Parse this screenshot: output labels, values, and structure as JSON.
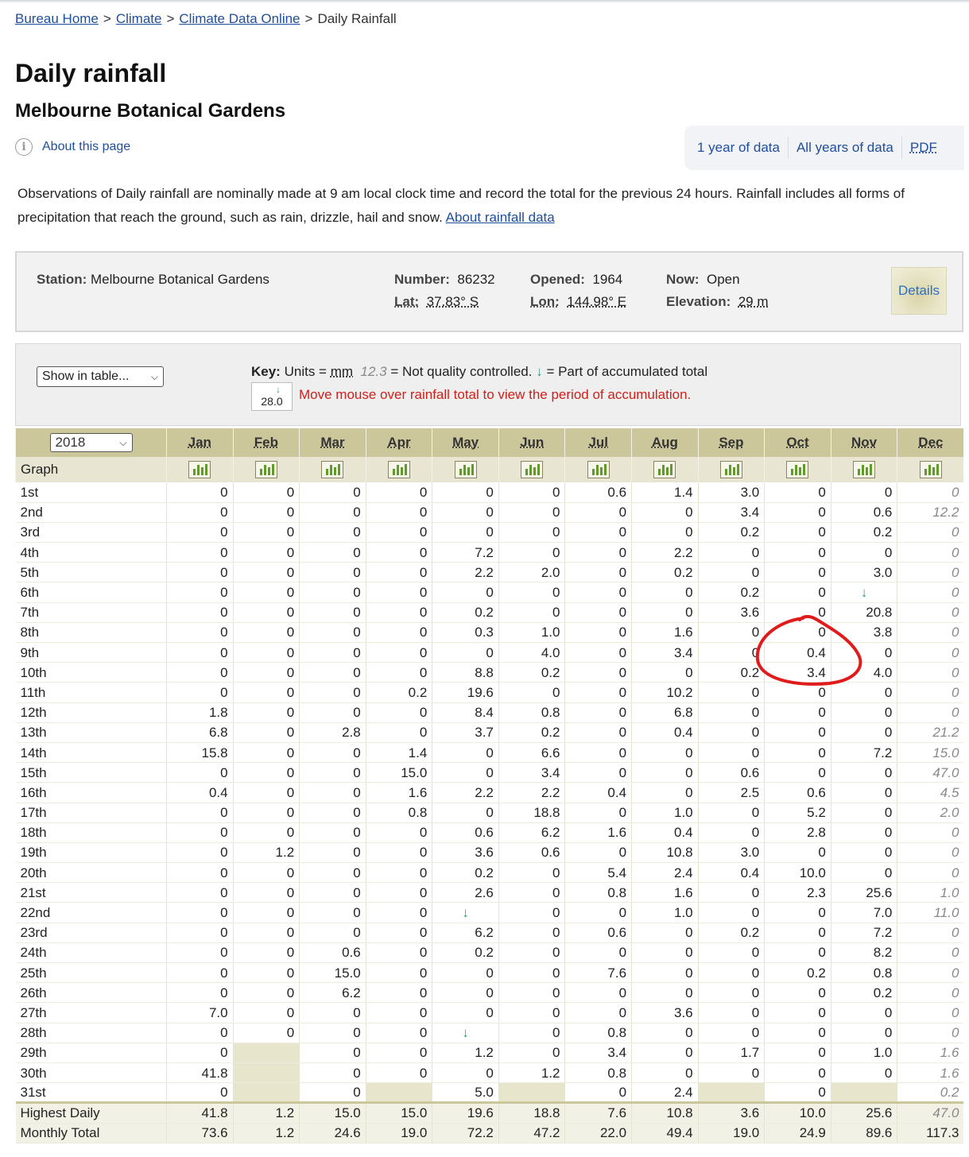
{
  "breadcrumb": {
    "home": "Bureau Home",
    "climate": "Climate",
    "cdo": "Climate Data Online",
    "current": "Daily Rainfall",
    "separator": ">"
  },
  "title": "Daily rainfall",
  "subtitle": "Melbourne Botanical Gardens",
  "about_link": "About this page",
  "views": {
    "one_year": "1 year of data",
    "all_years": "All years of data",
    "pdf": "PDF"
  },
  "description": "Observations of Daily rainfall are nominally made at 9 am local clock time and record the total for the previous 24 hours. Rainfall includes all forms of precipitation that reach the ground, such as rain, drizzle, hail and snow.",
  "about_rainfall_link": "About rainfall data",
  "station": {
    "station_label": "Station:",
    "station_value": "Melbourne Botanical Gardens",
    "number_label": "Number:",
    "number_value": "86232",
    "opened_label": "Opened:",
    "opened_value": "1964",
    "now_label": "Now:",
    "now_value": "Open",
    "lat_label": "Lat:",
    "lat_value": "37.83° S",
    "lon_label": "Lon:",
    "lon_value": "144.98° E",
    "elev_label": "Elevation:",
    "elev_value": "29 m",
    "details": "Details"
  },
  "key": {
    "show_select": "Show in table...",
    "label": "Key:",
    "units_text": "Units =",
    "units": "mm",
    "nq_sample": "12.3",
    "nq_text": "= Not quality controlled.",
    "acc_arrow": "↓",
    "acc_text": "= Part of accumulated total",
    "sample_value": "28.0",
    "mouse_text": "Move mouse over rainfall total to view the period of accumulation."
  },
  "table": {
    "year": "2018",
    "graph_label": "Graph",
    "months": [
      "Jan",
      "Feb",
      "Mar",
      "Apr",
      "May",
      "Jun",
      "Jul",
      "Aug",
      "Sep",
      "Oct",
      "Nov",
      "Dec"
    ],
    "days": [
      "1st",
      "2nd",
      "3rd",
      "4th",
      "5th",
      "6th",
      "7th",
      "8th",
      "9th",
      "10th",
      "11th",
      "12th",
      "13th",
      "14th",
      "15th",
      "16th",
      "17th",
      "18th",
      "19th",
      "20th",
      "21st",
      "22nd",
      "23rd",
      "24th",
      "25th",
      "26th",
      "27th",
      "28th",
      "29th",
      "30th",
      "31st"
    ],
    "rows": [
      [
        "0",
        "0",
        "0",
        "0",
        "0",
        "0",
        "0.6",
        "1.4",
        "3.0",
        "0",
        "0",
        "0"
      ],
      [
        "0",
        "0",
        "0",
        "0",
        "0",
        "0",
        "0",
        "0",
        "3.4",
        "0",
        "0.6",
        "12.2"
      ],
      [
        "0",
        "0",
        "0",
        "0",
        "0",
        "0",
        "0",
        "0",
        "0.2",
        "0",
        "0.2",
        "0"
      ],
      [
        "0",
        "0",
        "0",
        "0",
        "7.2",
        "0",
        "0",
        "2.2",
        "0",
        "0",
        "0",
        "0"
      ],
      [
        "0",
        "0",
        "0",
        "0",
        "2.2",
        "2.0",
        "0",
        "0.2",
        "0",
        "0",
        "3.0",
        "0"
      ],
      [
        "0",
        "0",
        "0",
        "0",
        "0",
        "0",
        "0",
        "0",
        "0.2",
        "0",
        "↓",
        "0"
      ],
      [
        "0",
        "0",
        "0",
        "0",
        "0.2",
        "0",
        "0",
        "0",
        "3.6",
        "0",
        "20.8",
        "0"
      ],
      [
        "0",
        "0",
        "0",
        "0",
        "0.3",
        "1.0",
        "0",
        "1.6",
        "0",
        "0",
        "3.8",
        "0"
      ],
      [
        "0",
        "0",
        "0",
        "0",
        "0",
        "4.0",
        "0",
        "3.4",
        "0",
        "0.4",
        "0",
        "0"
      ],
      [
        "0",
        "0",
        "0",
        "0",
        "8.8",
        "0.2",
        "0",
        "0",
        "0.2",
        "3.4",
        "4.0",
        "0"
      ],
      [
        "0",
        "0",
        "0",
        "0.2",
        "19.6",
        "0",
        "0",
        "10.2",
        "0",
        "0",
        "0",
        "0"
      ],
      [
        "1.8",
        "0",
        "0",
        "0",
        "8.4",
        "0.8",
        "0",
        "6.8",
        "0",
        "0",
        "0",
        "0"
      ],
      [
        "6.8",
        "0",
        "2.8",
        "0",
        "3.7",
        "0.2",
        "0",
        "0.4",
        "0",
        "0",
        "0",
        "21.2"
      ],
      [
        "15.8",
        "0",
        "0",
        "1.4",
        "0",
        "6.6",
        "0",
        "0",
        "0",
        "0",
        "7.2",
        "15.0"
      ],
      [
        "0",
        "0",
        "0",
        "15.0",
        "0",
        "3.4",
        "0",
        "0",
        "0.6",
        "0",
        "0",
        "47.0"
      ],
      [
        "0.4",
        "0",
        "0",
        "1.6",
        "2.2",
        "2.2",
        "0.4",
        "0",
        "2.5",
        "0.6",
        "0",
        "4.5"
      ],
      [
        "0",
        "0",
        "0",
        "0.8",
        "0",
        "18.8",
        "0",
        "1.0",
        "0",
        "5.2",
        "0",
        "2.0"
      ],
      [
        "0",
        "0",
        "0",
        "0",
        "0.6",
        "6.2",
        "1.6",
        "0.4",
        "0",
        "2.8",
        "0",
        "0"
      ],
      [
        "0",
        "1.2",
        "0",
        "0",
        "3.6",
        "0.6",
        "0",
        "10.8",
        "3.0",
        "0",
        "0",
        "0"
      ],
      [
        "0",
        "0",
        "0",
        "0",
        "0.2",
        "0",
        "5.4",
        "2.4",
        "0.4",
        "10.0",
        "0",
        "0"
      ],
      [
        "0",
        "0",
        "0",
        "0",
        "2.6",
        "0",
        "0.8",
        "1.6",
        "0",
        "2.3",
        "25.6",
        "1.0"
      ],
      [
        "0",
        "0",
        "0",
        "0",
        "↓",
        "0",
        "0",
        "1.0",
        "0",
        "0",
        "7.0",
        "11.0"
      ],
      [
        "0",
        "0",
        "0",
        "0",
        "6.2",
        "0",
        "0.6",
        "0",
        "0.2",
        "0",
        "7.2",
        "0"
      ],
      [
        "0",
        "0",
        "0.6",
        "0",
        "0.2",
        "0",
        "0",
        "0",
        "0",
        "0",
        "8.2",
        "0"
      ],
      [
        "0",
        "0",
        "15.0",
        "0",
        "0",
        "0",
        "7.6",
        "0",
        "0",
        "0.2",
        "0.8",
        "0"
      ],
      [
        "0",
        "0",
        "6.2",
        "0",
        "0",
        "0",
        "0",
        "0",
        "0",
        "0",
        "0.2",
        "0"
      ],
      [
        "7.0",
        "0",
        "0",
        "0",
        "0",
        "0",
        "0",
        "3.6",
        "0",
        "0",
        "0",
        "0"
      ],
      [
        "0",
        "0",
        "0",
        "0",
        "↓",
        "0",
        "0.8",
        "0",
        "0",
        "0",
        "0",
        "0"
      ],
      [
        "0",
        "",
        "0",
        "0",
        "1.2",
        "0",
        "3.4",
        "0",
        "1.7",
        "0",
        "1.0",
        "1.6"
      ],
      [
        "41.8",
        "",
        "0",
        "0",
        "0",
        "1.2",
        "0.8",
        "0",
        "0",
        "0",
        "0",
        "1.6"
      ],
      [
        "0",
        "",
        "0",
        "",
        "5.0",
        "",
        "0",
        "2.4",
        "",
        "0",
        "",
        "0.2"
      ]
    ],
    "highest_label": "Highest Daily",
    "highest": [
      "41.8",
      "1.2",
      "15.0",
      "15.0",
      "19.6",
      "18.8",
      "7.6",
      "10.8",
      "3.6",
      "10.0",
      "25.6",
      "47.0"
    ],
    "total_label": "Monthly Total",
    "totals": [
      "73.6",
      "1.2",
      "24.6",
      "19.0",
      "72.2",
      "47.2",
      "22.0",
      "49.4",
      "19.0",
      "24.9",
      "89.6",
      "117.3"
    ]
  },
  "colors": {
    "header": "#cbc79a",
    "graph_row": "#e8e6d2",
    "accent_link": "#1f4e9c",
    "warning": "#d0201a",
    "annotation": "#e01b1b"
  }
}
